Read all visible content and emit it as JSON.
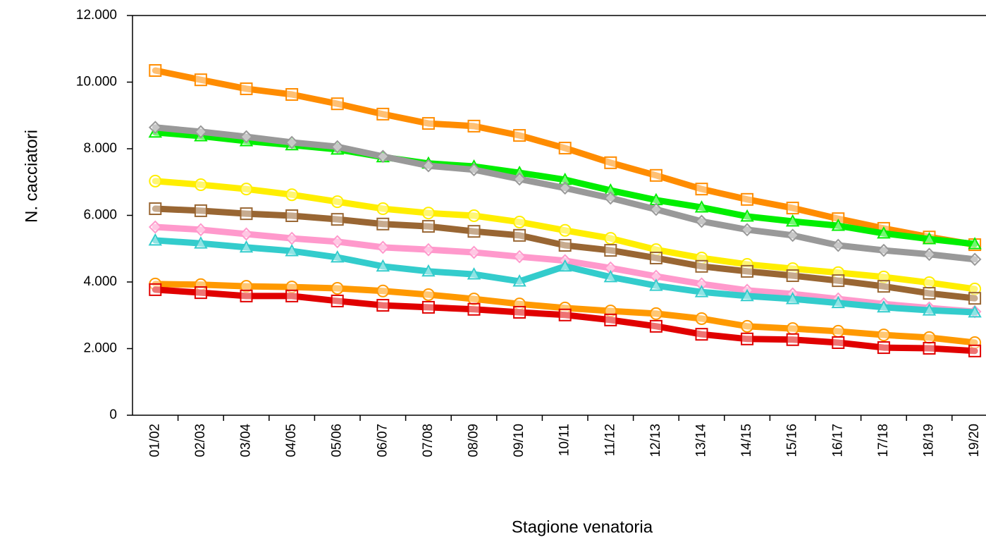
{
  "chart_data": {
    "type": "line",
    "x_label": "Stagione venatoria",
    "y_label": "N. cacciatori",
    "categories": [
      "01/02",
      "02/03",
      "03/04",
      "04/05",
      "05/06",
      "06/07",
      "07/08",
      "08/09",
      "09/10",
      "10/11",
      "11/12",
      "12/13",
      "13/14",
      "14/15",
      "15/16",
      "16/17",
      "17/18",
      "18/19",
      "19/20"
    ],
    "ylim": [
      0,
      12000
    ],
    "yticks": [
      0,
      {
        "value": 2000,
        "label": "2.000"
      },
      {
        "value": 4000,
        "label": "4.000"
      },
      {
        "value": 6000,
        "label": "6.000"
      },
      {
        "value": 8000,
        "label": "8.000"
      },
      {
        "value": 10000,
        "label": "10.000"
      },
      {
        "value": 12000,
        "label": "12.000"
      }
    ],
    "grid": false,
    "series": [
      {
        "color": "#ff8c00",
        "marker": "square",
        "values": [
          10350,
          10070,
          9800,
          9630,
          9350,
          9040,
          8760,
          8680,
          8400,
          8020,
          7580,
          7200,
          6790,
          6480,
          6220,
          5900,
          5610,
          5350,
          5120
        ]
      },
      {
        "color": "#00ee00",
        "marker": "triangle",
        "values": [
          8490,
          8380,
          8230,
          8110,
          7980,
          7750,
          7560,
          7470,
          7280,
          7070,
          6750,
          6460,
          6240,
          5970,
          5820,
          5690,
          5460,
          5290,
          5140
        ]
      },
      {
        "color": "#999999",
        "marker": "diamond",
        "values": [
          8640,
          8510,
          8360,
          8190,
          8060,
          7770,
          7490,
          7370,
          7090,
          6820,
          6520,
          6180,
          5820,
          5570,
          5400,
          5100,
          4950,
          4830,
          4680
        ]
      },
      {
        "color": "#ffee00",
        "marker": "circle",
        "values": [
          7030,
          6920,
          6790,
          6620,
          6410,
          6200,
          6070,
          5990,
          5800,
          5550,
          5310,
          4970,
          4720,
          4530,
          4400,
          4280,
          4150,
          3980,
          3790
        ]
      },
      {
        "color": "#996633",
        "marker": "square",
        "values": [
          6200,
          6140,
          6050,
          5990,
          5880,
          5740,
          5670,
          5520,
          5400,
          5100,
          4950,
          4720,
          4470,
          4320,
          4190,
          4040,
          3870,
          3660,
          3510
        ]
      },
      {
        "color": "#ff99cc",
        "marker": "diamond",
        "values": [
          5650,
          5570,
          5440,
          5310,
          5210,
          5040,
          4970,
          4890,
          4760,
          4640,
          4420,
          4170,
          3940,
          3750,
          3640,
          3490,
          3340,
          3220,
          3110
        ]
      },
      {
        "color": "#33cccc",
        "marker": "triangle",
        "values": [
          5250,
          5160,
          5040,
          4930,
          4740,
          4470,
          4320,
          4230,
          4020,
          4470,
          4150,
          3890,
          3700,
          3580,
          3490,
          3370,
          3240,
          3150,
          3090
        ]
      },
      {
        "color": "#ff9900",
        "marker": "circle",
        "values": [
          3940,
          3920,
          3870,
          3850,
          3810,
          3730,
          3620,
          3490,
          3340,
          3220,
          3130,
          3050,
          2900,
          2670,
          2600,
          2520,
          2410,
          2330,
          2180
        ]
      },
      {
        "color": "#e00000",
        "marker": "square",
        "values": [
          3770,
          3680,
          3580,
          3580,
          3430,
          3300,
          3240,
          3180,
          3090,
          3010,
          2860,
          2670,
          2430,
          2290,
          2270,
          2180,
          2030,
          2010,
          1930
        ]
      }
    ]
  }
}
